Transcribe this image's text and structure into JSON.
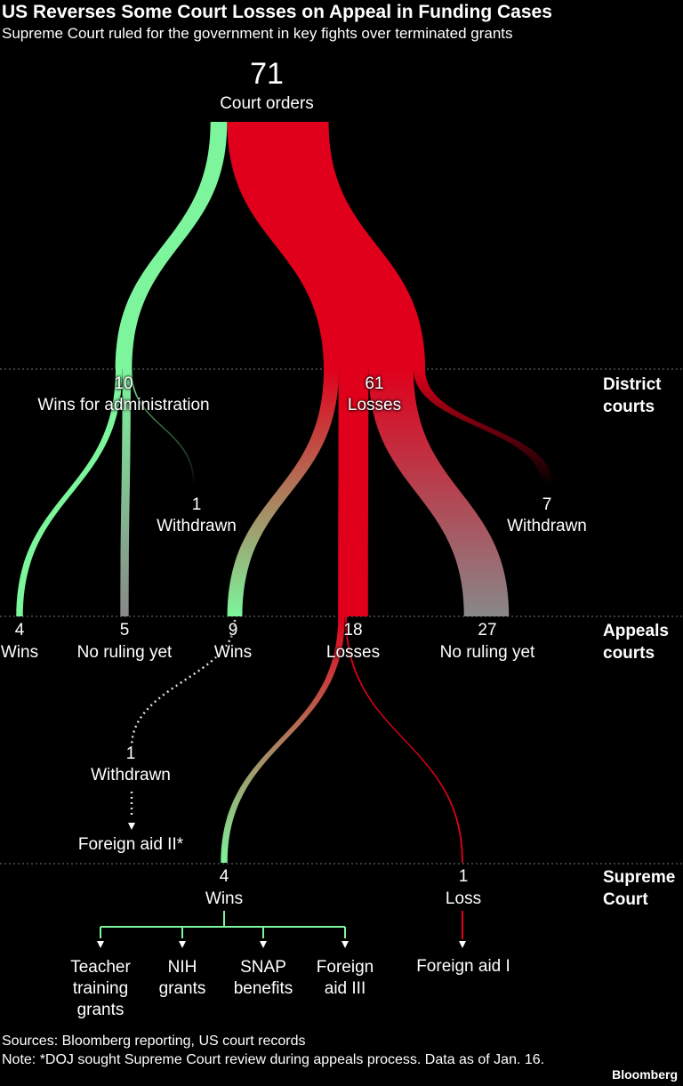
{
  "header": {
    "title": "US Reverses Some Court Losses on Appeal in Funding Cases",
    "subtitle": "Supreme Court ruled for the government in key fights over terminated grants"
  },
  "levels": [
    "District courts",
    "Appeals courts",
    "Supreme Court"
  ],
  "nodes": [
    {
      "value": 71,
      "label": "Court orders"
    },
    {
      "value": 10,
      "label": "Wins for administration"
    },
    {
      "value": 61,
      "label": "Losses"
    },
    {
      "value": 1,
      "label": "Withdrawn"
    },
    {
      "value": 7,
      "label": "Withdrawn"
    },
    {
      "value": 4,
      "label": "Wins"
    },
    {
      "value": 5,
      "label": "No ruling yet"
    },
    {
      "value": 9,
      "label": "Wins"
    },
    {
      "value": 18,
      "label": "Losses"
    },
    {
      "value": 27,
      "label": "No ruling yet"
    },
    {
      "value": 1,
      "label": "Withdrawn"
    },
    {
      "value": 4,
      "label": "Wins"
    },
    {
      "value": 1,
      "label": "Loss"
    }
  ],
  "withdrawn_case": "Foreign aid II*",
  "win_cases": [
    "Teacher training grants",
    "NIH grants",
    "SNAP benefits",
    "Foreign aid III"
  ],
  "loss_case": "Foreign aid I",
  "footer": {
    "sources": "Sources: Bloomberg reporting, US court records",
    "note": "Note: *DOJ sought Supreme Court review during appeals process. Data as of Jan. 16.",
    "brand": "Bloomberg"
  }
}
